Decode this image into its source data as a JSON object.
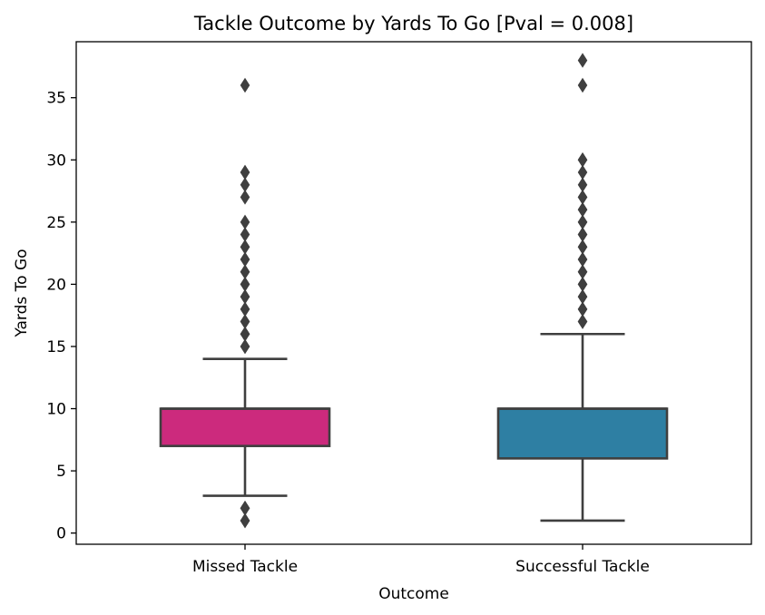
{
  "chart_data": {
    "type": "box",
    "title": "Tackle Outcome by Yards To Go [Pval = 0.008]",
    "xlabel": "Outcome",
    "ylabel": "Yards To Go",
    "ylim": [
      -0.9,
      39.5
    ],
    "yticks": [
      0,
      5,
      10,
      15,
      20,
      25,
      30,
      35
    ],
    "grid": false,
    "legend": "none",
    "categories": [
      "Missed Tackle",
      "Successful Tackle"
    ],
    "series": [
      {
        "category": "Missed Tackle",
        "color": "#cc2a7d",
        "whisker_low": 3,
        "q1": 7,
        "median": 10,
        "q3": 10,
        "whisker_high": 14,
        "outliers": [
          1,
          1,
          1,
          2,
          2,
          2,
          15,
          15,
          16,
          16,
          16,
          17,
          17,
          18,
          18,
          19,
          19,
          20,
          20,
          21,
          21,
          22,
          22,
          23,
          23,
          24,
          25,
          27,
          28,
          29,
          29,
          36
        ]
      },
      {
        "category": "Successful Tackle",
        "color": "#2e7fa3",
        "whisker_low": 1,
        "q1": 6,
        "median": 10,
        "q3": 10,
        "whisker_high": 16,
        "outliers": [
          17,
          17,
          18,
          18,
          19,
          19,
          20,
          20,
          21,
          21,
          22,
          22,
          23,
          23,
          24,
          24,
          25,
          25,
          26,
          26,
          27,
          27,
          28,
          29,
          30,
          30,
          36,
          38
        ]
      }
    ]
  }
}
